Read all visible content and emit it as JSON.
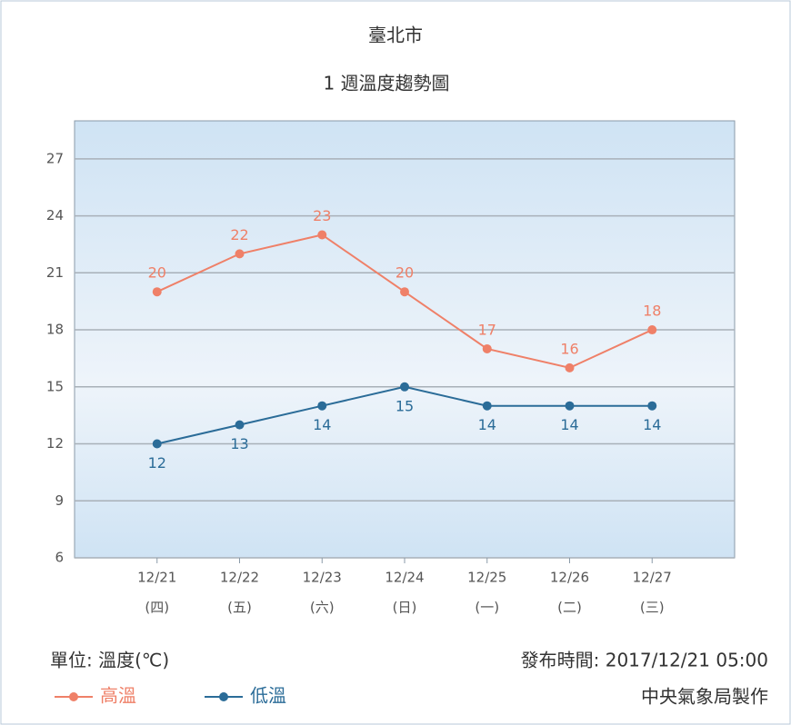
{
  "chart_data": {
    "type": "line",
    "title": "臺北市",
    "subtitle": "1 週溫度趨勢圖",
    "categories": [
      "12/21",
      "12/22",
      "12/23",
      "12/24",
      "12/25",
      "12/26",
      "12/27"
    ],
    "category_sublabels": [
      "(四)",
      "(五)",
      "(六)",
      "(日)",
      "(一)",
      "(二)",
      "(三)"
    ],
    "series": [
      {
        "name": "高溫",
        "color": "#ef8068",
        "values": [
          20,
          22,
          23,
          20,
          17,
          16,
          18
        ],
        "label_side": "above"
      },
      {
        "name": "低溫",
        "color": "#2b6c98",
        "values": [
          12,
          13,
          14,
          15,
          14,
          14,
          14
        ],
        "label_side": "below"
      }
    ],
    "ylim": [
      6,
      29
    ],
    "yticks": [
      6,
      9,
      12,
      15,
      18,
      21,
      24,
      27
    ],
    "grid": true,
    "unit_note": "單位: 溫度(℃)",
    "issued": "發布時間: 2017/12/21 05:00",
    "credit": "中央氣象局製作"
  }
}
